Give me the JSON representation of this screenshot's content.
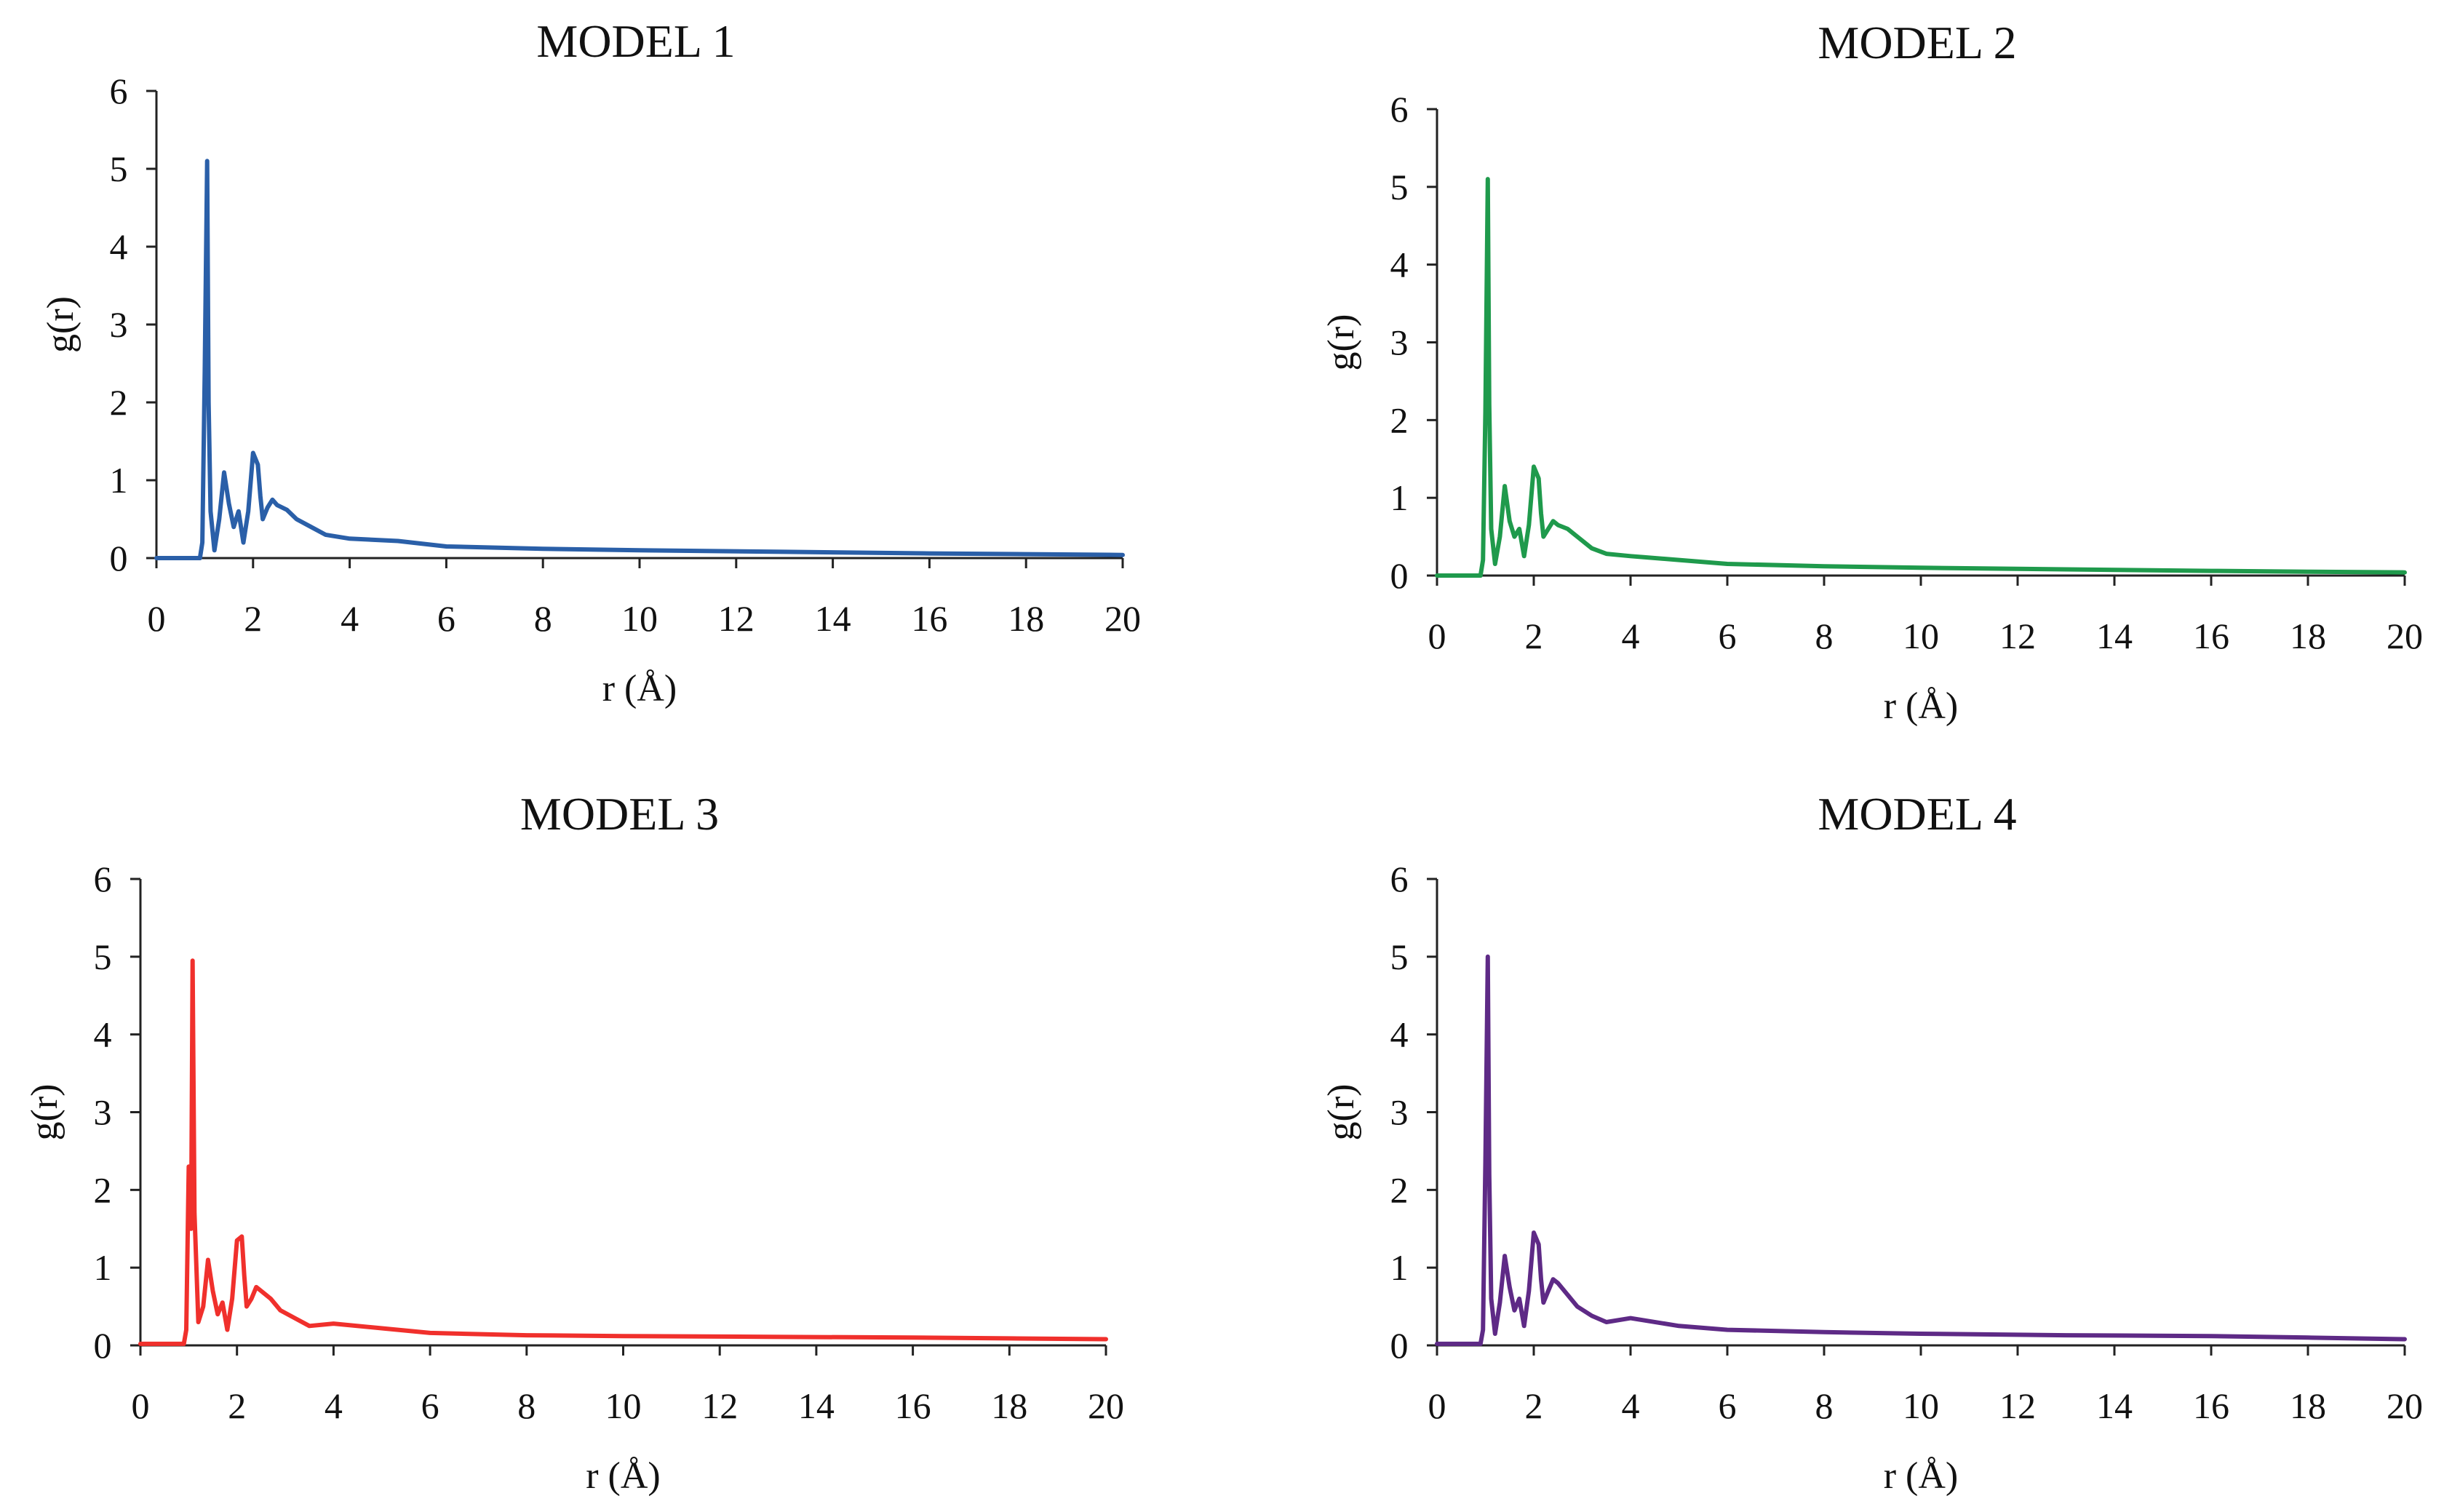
{
  "chart_data": [
    {
      "type": "line",
      "title": "MODEL 1",
      "xlabel": "r (Å)",
      "ylabel": "g(r)",
      "xlim": [
        0,
        20
      ],
      "ylim": [
        0,
        6
      ],
      "xticks": [
        "0",
        "2",
        "4",
        "6",
        "8",
        "10",
        "12",
        "14",
        "16",
        "18",
        "20"
      ],
      "yticks": [
        "0",
        "1",
        "2",
        "3",
        "4",
        "5",
        "6"
      ],
      "grid": false,
      "color": "#2a5fa8",
      "series": [
        {
          "name": "g(r)",
          "x": [
            0,
            0.9,
            0.95,
            1.0,
            1.05,
            1.08,
            1.12,
            1.2,
            1.3,
            1.4,
            1.5,
            1.6,
            1.7,
            1.8,
            1.9,
            2.0,
            2.1,
            2.15,
            2.2,
            2.3,
            2.4,
            2.5,
            2.7,
            2.9,
            3.2,
            3.5,
            4.0,
            5.0,
            6.0,
            8.0,
            10.0,
            13.0,
            16.0,
            18.0,
            20.0
          ],
          "y": [
            0,
            0,
            0.2,
            2.4,
            5.1,
            2.0,
            0.6,
            0.1,
            0.5,
            1.1,
            0.7,
            0.4,
            0.6,
            0.2,
            0.6,
            1.35,
            1.2,
            0.8,
            0.5,
            0.65,
            0.75,
            0.68,
            0.62,
            0.5,
            0.4,
            0.3,
            0.25,
            0.22,
            0.15,
            0.12,
            0.1,
            0.08,
            0.06,
            0.05,
            0.04
          ]
        }
      ]
    },
    {
      "type": "line",
      "title": "MODEL 2",
      "xlabel": "r (Å)",
      "ylabel": "g(r)",
      "xlim": [
        0,
        20
      ],
      "ylim": [
        0,
        6
      ],
      "xticks": [
        "0",
        "2",
        "4",
        "6",
        "8",
        "10",
        "12",
        "14",
        "16",
        "18",
        "20"
      ],
      "yticks": [
        "0",
        "1",
        "2",
        "3",
        "4",
        "5",
        "6"
      ],
      "grid": false,
      "color": "#1f9a4c",
      "series": [
        {
          "name": "g(r)",
          "x": [
            0,
            0.9,
            0.95,
            1.0,
            1.05,
            1.08,
            1.12,
            1.2,
            1.3,
            1.4,
            1.5,
            1.6,
            1.7,
            1.8,
            1.9,
            2.0,
            2.1,
            2.15,
            2.2,
            2.3,
            2.4,
            2.5,
            2.7,
            2.9,
            3.2,
            3.5,
            4.0,
            5.0,
            6.0,
            8.0,
            10.0,
            13.0,
            16.0,
            18.0,
            20.0
          ],
          "y": [
            0,
            0,
            0.2,
            2.1,
            5.1,
            2.2,
            0.6,
            0.15,
            0.5,
            1.15,
            0.7,
            0.5,
            0.6,
            0.25,
            0.65,
            1.4,
            1.25,
            0.8,
            0.5,
            0.6,
            0.7,
            0.65,
            0.6,
            0.5,
            0.35,
            0.28,
            0.25,
            0.2,
            0.15,
            0.12,
            0.1,
            0.08,
            0.06,
            0.05,
            0.04
          ]
        }
      ]
    },
    {
      "type": "line",
      "title": "MODEL 3",
      "xlabel": "r (Å)",
      "ylabel": "g(r)",
      "xlim": [
        0,
        20
      ],
      "ylim": [
        0,
        6
      ],
      "xticks": [
        "0",
        "2",
        "4",
        "6",
        "8",
        "10",
        "12",
        "14",
        "16",
        "18",
        "20"
      ],
      "yticks": [
        "0",
        "1",
        "2",
        "3",
        "4",
        "5",
        "6"
      ],
      "grid": false,
      "color": "#f0302c",
      "series": [
        {
          "name": "g(r)",
          "x": [
            0,
            0.9,
            0.95,
            1.0,
            1.05,
            1.08,
            1.12,
            1.2,
            1.3,
            1.4,
            1.5,
            1.6,
            1.7,
            1.8,
            1.9,
            2.0,
            2.1,
            2.15,
            2.2,
            2.3,
            2.4,
            2.5,
            2.7,
            2.9,
            3.2,
            3.5,
            4.0,
            5.0,
            6.0,
            8.0,
            10.0,
            13.0,
            16.0,
            18.0,
            20.0
          ],
          "y": [
            0.02,
            0.02,
            0.2,
            2.3,
            1.5,
            4.95,
            1.7,
            0.3,
            0.5,
            1.1,
            0.7,
            0.4,
            0.55,
            0.2,
            0.6,
            1.35,
            1.4,
            0.9,
            0.5,
            0.6,
            0.75,
            0.7,
            0.6,
            0.45,
            0.35,
            0.25,
            0.28,
            0.22,
            0.16,
            0.13,
            0.12,
            0.11,
            0.1,
            0.09,
            0.08
          ]
        }
      ]
    },
    {
      "type": "line",
      "title": "MODEL 4",
      "xlabel": "r (Å)",
      "ylabel": "g(r)",
      "xlim": [
        0,
        20
      ],
      "ylim": [
        0,
        6
      ],
      "xticks": [
        "0",
        "2",
        "4",
        "6",
        "8",
        "10",
        "12",
        "14",
        "16",
        "18",
        "20"
      ],
      "yticks": [
        "0",
        "1",
        "2",
        "3",
        "4",
        "5",
        "6"
      ],
      "grid": false,
      "color": "#5e2a86",
      "series": [
        {
          "name": "g(r)",
          "x": [
            0,
            0.9,
            0.95,
            1.0,
            1.05,
            1.08,
            1.12,
            1.2,
            1.3,
            1.4,
            1.5,
            1.6,
            1.7,
            1.8,
            1.9,
            2.0,
            2.1,
            2.15,
            2.2,
            2.3,
            2.4,
            2.5,
            2.7,
            2.9,
            3.2,
            3.5,
            4.0,
            5.0,
            6.0,
            8.0,
            10.0,
            13.0,
            16.0,
            18.0,
            20.0
          ],
          "y": [
            0.02,
            0.02,
            0.2,
            2.35,
            5.0,
            2.2,
            0.6,
            0.15,
            0.55,
            1.15,
            0.75,
            0.45,
            0.6,
            0.25,
            0.7,
            1.45,
            1.3,
            0.85,
            0.55,
            0.7,
            0.85,
            0.8,
            0.65,
            0.5,
            0.38,
            0.3,
            0.35,
            0.25,
            0.2,
            0.17,
            0.15,
            0.13,
            0.12,
            0.1,
            0.08
          ]
        }
      ]
    }
  ]
}
